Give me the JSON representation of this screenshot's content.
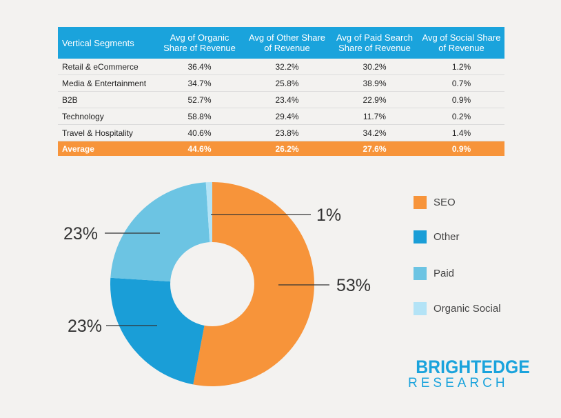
{
  "table": {
    "headers": [
      "Vertical Segments",
      "Avg of Organic Share of Revenue",
      "Avg of Other Share of Revenue",
      "Avg of Paid Search Share of Revenue",
      "Avg of Social Share of Revenue"
    ],
    "rows": [
      [
        "Retail & eCommerce",
        "36.4%",
        "32.2%",
        "30.2%",
        "1.2%"
      ],
      [
        "Media & Entertainment",
        "34.7%",
        "25.8%",
        "38.9%",
        "0.7%"
      ],
      [
        "B2B",
        "52.7%",
        "23.4%",
        "22.9%",
        "0.9%"
      ],
      [
        "Technology",
        "58.8%",
        "29.4%",
        "11.7%",
        "0.2%"
      ],
      [
        "Travel & Hospitality",
        "40.6%",
        "23.8%",
        "34.2%",
        "1.4%"
      ]
    ],
    "average": [
      "Average",
      "44.6%",
      "26.2%",
      "27.6%",
      "0.9%"
    ]
  },
  "chart_data": {
    "type": "pie",
    "variant": "donut",
    "categories": [
      "SEO",
      "Other",
      "Paid",
      "Organic Social"
    ],
    "values": [
      53,
      23,
      23,
      1
    ],
    "data_labels": [
      "53%",
      "23%",
      "23%",
      "1%"
    ],
    "colors": [
      "#f7943a",
      "#1a9ed7",
      "#6cc4e3",
      "#b3e3f6"
    ],
    "legend": [
      "SEO",
      "Other",
      "Paid",
      "Organic Social"
    ],
    "legend_position": "right"
  },
  "brand": {
    "line1": "BRIGHTEDGE",
    "line2": "RESEARCH"
  }
}
